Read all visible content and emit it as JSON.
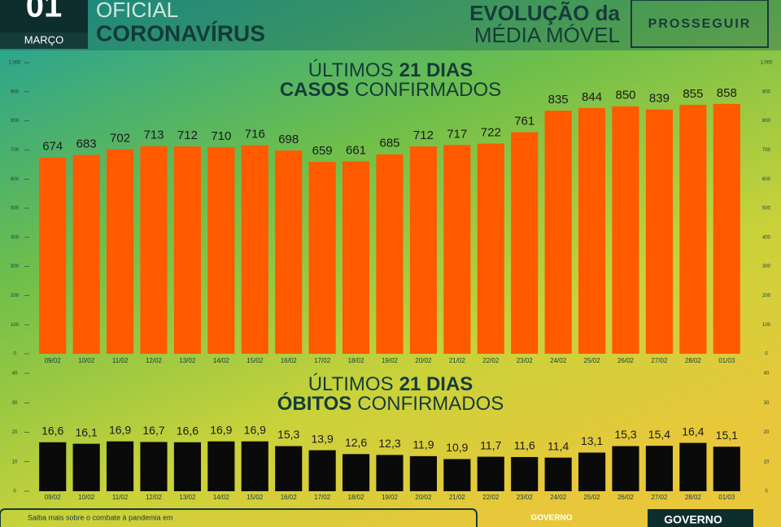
{
  "header": {
    "day": "01",
    "month": "MARÇO",
    "line1": "OFICIAL",
    "line2": "CORONAVÍRUS",
    "right1": "EVOLUÇÃO da",
    "right2": "MÉDIA MÓVEL",
    "brand": "PROSSEGUIR"
  },
  "footer": {
    "note": "Saiba mais sobre o combate à pandemia em",
    "gov1": "GOVERNO",
    "gov2": "GOVERNO"
  },
  "chart_data": [
    {
      "type": "bar",
      "title_lines": [
        [
          "ÚLTIMOS",
          "21 DIAS"
        ],
        [
          "CASOS",
          "CONFIRMADOS"
        ]
      ],
      "categories": [
        "09/02",
        "10/02",
        "11/02",
        "12/02",
        "13/02",
        "14/02",
        "15/02",
        "16/02",
        "17/02",
        "18/02",
        "19/02",
        "20/02",
        "21/02",
        "22/02",
        "23/02",
        "24/02",
        "25/02",
        "26/02",
        "27/02",
        "28/02",
        "01/03"
      ],
      "values": [
        674,
        683,
        702,
        713,
        712,
        710,
        716,
        698,
        659,
        661,
        685,
        712,
        717,
        722,
        761,
        835,
        844,
        850,
        839,
        855,
        858
      ],
      "color": "#ff5a00",
      "ylim": [
        0,
        1000
      ],
      "yticks": [
        0,
        100,
        200,
        300,
        400,
        500,
        600,
        700,
        800,
        900,
        {
          "value": 1000,
          "label": "1.000"
        }
      ]
    },
    {
      "type": "bar",
      "title_lines": [
        [
          "ÚLTIMOS",
          "21 DIAS"
        ],
        [
          "ÓBITOS",
          "CONFIRMADOS"
        ]
      ],
      "categories": [
        "09/02",
        "10/02",
        "11/02",
        "12/02",
        "13/02",
        "14/02",
        "15/02",
        "16/02",
        "17/02",
        "18/02",
        "19/02",
        "20/02",
        "21/02",
        "22/02",
        "23/02",
        "24/02",
        "25/02",
        "26/02",
        "27/02",
        "28/02",
        "01/03"
      ],
      "values": [
        16.6,
        16.1,
        16.9,
        16.7,
        16.6,
        16.9,
        16.9,
        15.3,
        13.9,
        12.6,
        12.3,
        11.9,
        10.9,
        11.7,
        11.6,
        11.4,
        13.1,
        15.3,
        15.4,
        16.4,
        15.1
      ],
      "value_labels": [
        "16,6",
        "16,1",
        "16,9",
        "16,7",
        "16,6",
        "16,9",
        "16,9",
        "15,3",
        "13,9",
        "12,6",
        "12,3",
        "11,9",
        "10,9",
        "11,7",
        "11,6",
        "11,4",
        "13,1",
        "15,3",
        "15,4",
        "16,4",
        "15,1"
      ],
      "color": "#0a0a0a",
      "ylim": [
        0,
        40
      ],
      "yticks": [
        0,
        10,
        20,
        30,
        40
      ]
    }
  ]
}
